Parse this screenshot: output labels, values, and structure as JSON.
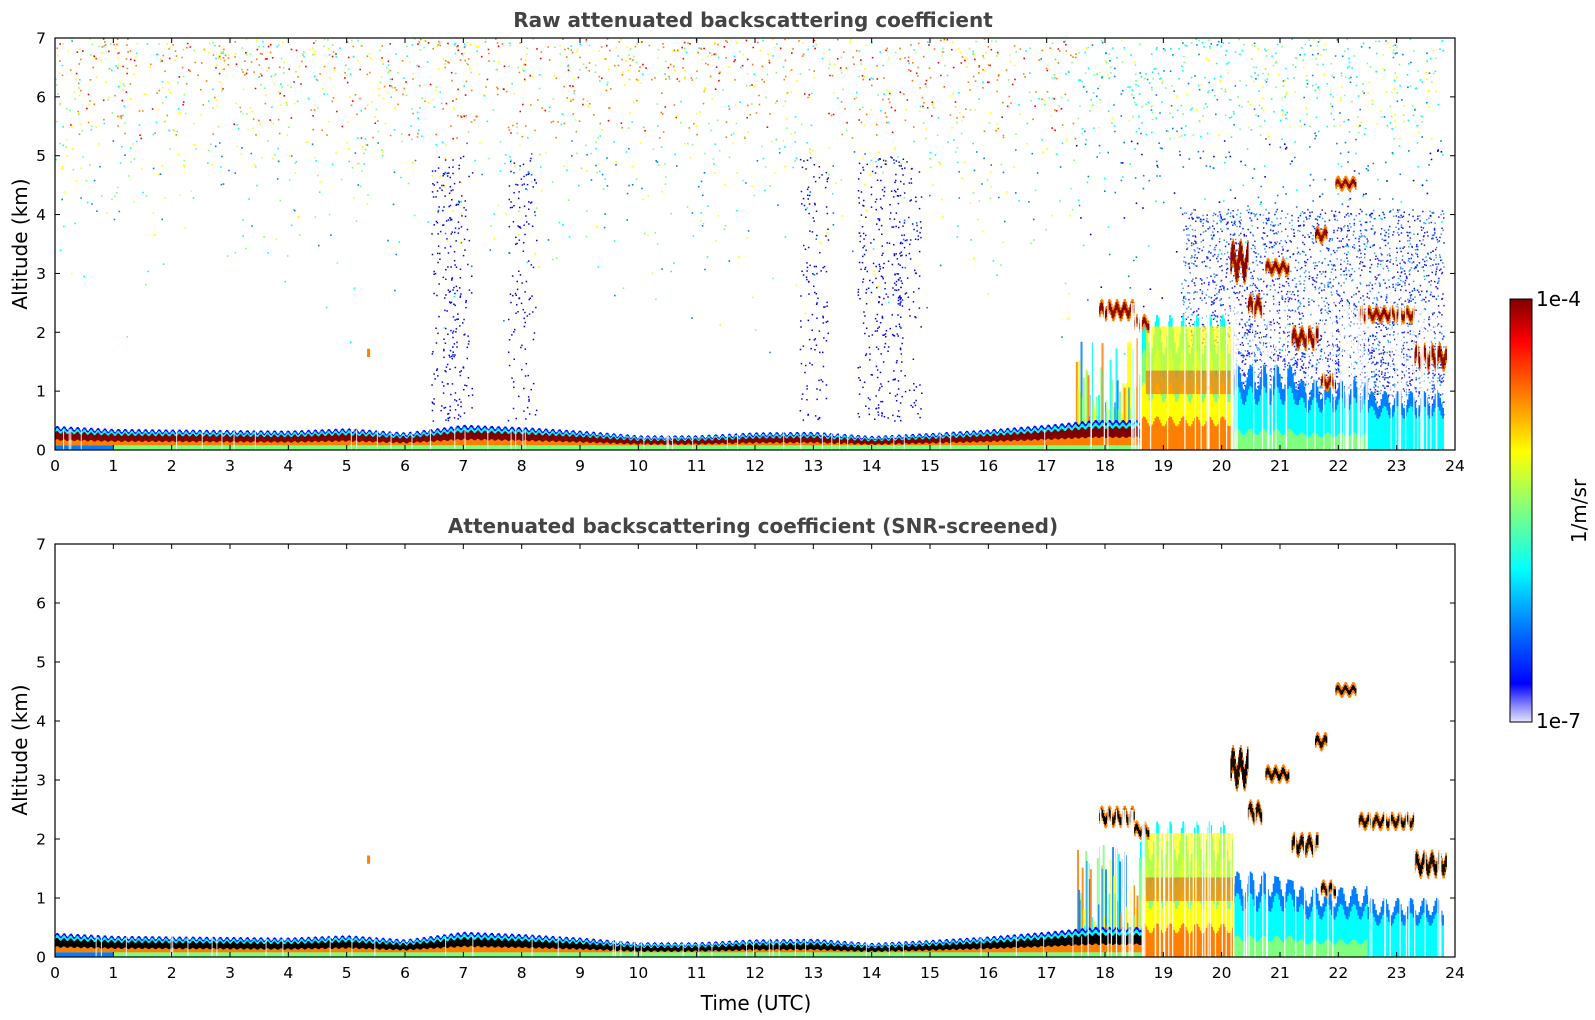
{
  "colors": {
    "jet": [
      "#00007f",
      "#0000ff",
      "#007fff",
      "#00ffff",
      "#7fff7f",
      "#ffff00",
      "#ff7f00",
      "#ff0000",
      "#7f0000"
    ],
    "screened_core": "#000000",
    "background": "#ffffff",
    "title_color": "#444444"
  },
  "chart_data": [
    {
      "type": "heatmap",
      "title": "Raw attenuated backscattering coefficient",
      "xlabel": "",
      "ylabel": "Altitude (km)",
      "xlim": [
        0,
        24
      ],
      "ylim": [
        0,
        7
      ],
      "xticks": [
        "0",
        "1",
        "2",
        "3",
        "4",
        "5",
        "6",
        "7",
        "8",
        "9",
        "10",
        "11",
        "12",
        "13",
        "14",
        "15",
        "16",
        "17",
        "18",
        "19",
        "20",
        "21",
        "22",
        "23",
        "24"
      ],
      "yticks": [
        "0",
        "1",
        "2",
        "3",
        "4",
        "5",
        "6",
        "7"
      ],
      "colorscale": "jet (log)",
      "data_extent_hours": 23.8,
      "surface_layer_top_km": [
        {
          "t": 0,
          "z": 0.38
        },
        {
          "t": 1,
          "z": 0.33
        },
        {
          "t": 2,
          "z": 0.32
        },
        {
          "t": 3,
          "z": 0.31
        },
        {
          "t": 4,
          "z": 0.3
        },
        {
          "t": 5,
          "z": 0.34
        },
        {
          "t": 6,
          "z": 0.27
        },
        {
          "t": 7,
          "z": 0.4
        },
        {
          "t": 8,
          "z": 0.36
        },
        {
          "t": 9,
          "z": 0.3
        },
        {
          "t": 10,
          "z": 0.22
        },
        {
          "t": 11,
          "z": 0.22
        },
        {
          "t": 12,
          "z": 0.27
        },
        {
          "t": 13,
          "z": 0.28
        },
        {
          "t": 14,
          "z": 0.21
        },
        {
          "t": 15,
          "z": 0.26
        },
        {
          "t": 16,
          "z": 0.32
        },
        {
          "t": 17,
          "z": 0.4
        },
        {
          "t": 17.8,
          "z": 0.48
        }
      ],
      "aerosol_layers": [
        {
          "t0": 18.6,
          "t1": 20.2,
          "z0": 0,
          "z1": 2.3,
          "level": "high"
        },
        {
          "t0": 20.2,
          "t1": 21.3,
          "z0": 0,
          "z1": 1.45,
          "level": "medium"
        },
        {
          "t0": 21.3,
          "t1": 22.5,
          "z0": 0,
          "z1": 1.2,
          "level": "medium"
        },
        {
          "t0": 22.5,
          "t1": 23.8,
          "z0": 0,
          "z1": 1.0,
          "level": "low"
        }
      ],
      "cloud_features": [
        {
          "t0": 17.9,
          "t1": 18.5,
          "z0": 2.25,
          "z1": 2.5
        },
        {
          "t0": 18.5,
          "t1": 18.75,
          "z0": 2.05,
          "z1": 2.25
        },
        {
          "t0": 20.15,
          "t1": 20.45,
          "z0": 2.9,
          "z1": 3.5
        },
        {
          "t0": 20.45,
          "t1": 20.7,
          "z0": 2.3,
          "z1": 2.6
        },
        {
          "t0": 20.75,
          "t1": 21.15,
          "z0": 3.0,
          "z1": 3.2
        },
        {
          "t0": 21.2,
          "t1": 21.65,
          "z0": 1.75,
          "z1": 2.05
        },
        {
          "t0": 21.6,
          "t1": 21.8,
          "z0": 3.55,
          "z1": 3.75
        },
        {
          "t0": 21.7,
          "t1": 21.95,
          "z0": 1.05,
          "z1": 1.25
        },
        {
          "t0": 21.95,
          "t1": 22.3,
          "z0": 4.45,
          "z1": 4.6
        },
        {
          "t0": 22.35,
          "t1": 23.3,
          "z0": 2.2,
          "z1": 2.4
        },
        {
          "t0": 23.3,
          "t1": 23.85,
          "z0": 1.4,
          "z1": 1.75
        }
      ]
    },
    {
      "type": "heatmap",
      "title": "Attenuated backscattering coefficient (SNR-screened)",
      "xlabel": "Time (UTC)",
      "ylabel": "Altitude (km)",
      "xlim": [
        0,
        24
      ],
      "ylim": [
        0,
        7
      ],
      "xticks": [
        "0",
        "1",
        "2",
        "3",
        "4",
        "5",
        "6",
        "7",
        "8",
        "9",
        "10",
        "11",
        "12",
        "13",
        "14",
        "15",
        "16",
        "17",
        "18",
        "19",
        "20",
        "21",
        "22",
        "23",
        "24"
      ],
      "yticks": [
        "0",
        "1",
        "2",
        "3",
        "4",
        "5",
        "6",
        "7"
      ],
      "colorscale": "jet (log)",
      "screened_gap": {
        "t0": 20.8,
        "t1": 22.5,
        "z0": 1.2,
        "z1": 2.4
      }
    }
  ],
  "colorbar": {
    "max_label": "1e-4",
    "min_label": "1e-7",
    "unit_label": "1/m/sr",
    "range": [
      1e-07,
      0.0001
    ]
  }
}
